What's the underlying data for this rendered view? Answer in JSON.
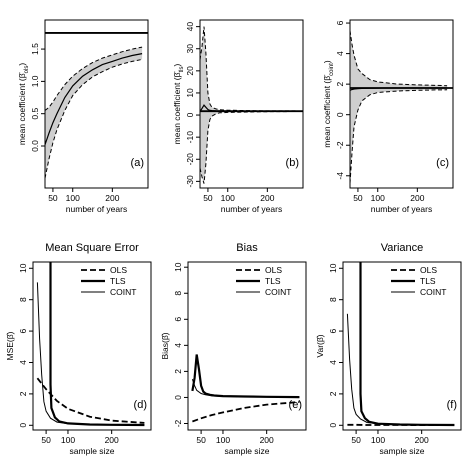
{
  "chart_data": [
    {
      "id": "a",
      "type": "area",
      "title": "",
      "panel_label": "(a)",
      "xlabel": "number of years",
      "ylabel": "mean coefficient",
      "ylabel_symbol": "(β̄",
      "ylabel_sub": "ols",
      "ylabel_close": ")",
      "xlim": [
        30,
        290
      ],
      "ylim": [
        -0.65,
        1.95
      ],
      "xticks": [
        50,
        100,
        200
      ],
      "xtick_labels": [
        "50",
        "100",
        "200"
      ],
      "yticks": [
        0,
        0.5,
        1.0,
        1.5
      ],
      "ytick_labels": [
        "0.0",
        "0.5",
        "1.0",
        "1.5"
      ],
      "hline": 1.75,
      "x": [
        30,
        40,
        50,
        60,
        80,
        100,
        125,
        150,
        175,
        200,
        225,
        250,
        275
      ],
      "band_lower": [
        -0.5,
        -0.2,
        0.05,
        0.25,
        0.55,
        0.78,
        0.95,
        1.07,
        1.15,
        1.22,
        1.27,
        1.31,
        1.34
      ],
      "band_upper": [
        0.55,
        0.6,
        0.68,
        0.78,
        0.95,
        1.08,
        1.2,
        1.29,
        1.36,
        1.41,
        1.46,
        1.5,
        1.53
      ],
      "series": [
        {
          "values": [
            0.02,
            0.2,
            0.36,
            0.5,
            0.75,
            0.93,
            1.08,
            1.18,
            1.26,
            1.31,
            1.36,
            1.4,
            1.43
          ]
        }
      ]
    },
    {
      "id": "b",
      "type": "area",
      "title": "",
      "panel_label": "(b)",
      "xlabel": "number of years",
      "ylabel": "mean coefficient",
      "ylabel_symbol": "(β̄",
      "ylabel_sub": "tls",
      "ylabel_close": ")",
      "xlim": [
        30,
        290
      ],
      "ylim": [
        -33,
        43
      ],
      "xticks": [
        50,
        100,
        200
      ],
      "xtick_labels": [
        "50",
        "100",
        "200"
      ],
      "yticks": [
        -30,
        -20,
        -10,
        0,
        10,
        20,
        30,
        40
      ],
      "ytick_labels": [
        "-30",
        "-20",
        "-10",
        "0",
        "10",
        "20",
        "30",
        "40"
      ],
      "hline": 1.75,
      "x": [
        30,
        35,
        40,
        45,
        50,
        55,
        60,
        70,
        80,
        100,
        150,
        200,
        275
      ],
      "band_lower": [
        -24,
        -28,
        -31,
        -22,
        -7,
        -2,
        -0.5,
        0.5,
        1.0,
        1.2,
        1.4,
        1.5,
        1.6
      ],
      "band_upper": [
        25,
        31,
        40,
        28,
        10,
        5,
        3.5,
        2.8,
        2.4,
        2.2,
        2.0,
        1.9,
        1.9
      ],
      "series": [
        {
          "values": [
            1.5,
            3.0,
            4.5,
            3.5,
            2.5,
            2.1,
            2.0,
            1.9,
            1.85,
            1.8,
            1.78,
            1.76,
            1.75
          ]
        }
      ]
    },
    {
      "id": "c",
      "type": "area",
      "title": "",
      "panel_label": "(c)",
      "xlabel": "number of years",
      "ylabel": "mean coefficient",
      "ylabel_symbol": "(β̄",
      "ylabel_sub": "coint",
      "ylabel_close": ")",
      "xlim": [
        30,
        290
      ],
      "ylim": [
        -4.8,
        6.2
      ],
      "xticks": [
        50,
        100,
        200
      ],
      "xtick_labels": [
        "50",
        "100",
        "200"
      ],
      "yticks": [
        -4,
        -2,
        0,
        2,
        4,
        6
      ],
      "ytick_labels": [
        "-4",
        "-2",
        "0",
        "2",
        "4",
        "6"
      ],
      "hline": 1.75,
      "x": [
        30,
        35,
        40,
        50,
        60,
        80,
        100,
        150,
        200,
        250,
        275
      ],
      "band_lower": [
        -4.5,
        -2.5,
        -0.8,
        0.3,
        0.9,
        1.3,
        1.45,
        1.55,
        1.6,
        1.62,
        1.63
      ],
      "band_upper": [
        5.5,
        4.6,
        3.9,
        3.0,
        2.7,
        2.3,
        2.15,
        2.0,
        1.95,
        1.92,
        1.9
      ],
      "series": [
        {
          "values": [
            1.6,
            1.65,
            1.68,
            1.7,
            1.72,
            1.73,
            1.74,
            1.75,
            1.75,
            1.75,
            1.75
          ]
        }
      ]
    },
    {
      "id": "d",
      "type": "line",
      "title": "Mean Square Error",
      "panel_label": "(d)",
      "xlabel": "sample size",
      "ylabel": "MSE(β̂)",
      "xlim": [
        20,
        290
      ],
      "ylim": [
        -0.3,
        10.4
      ],
      "xticks": [
        50,
        100,
        200
      ],
      "xtick_labels": [
        "50",
        "100",
        "200"
      ],
      "yticks": [
        0,
        2,
        4,
        6,
        8,
        10
      ],
      "ytick_labels": [
        "0",
        "2",
        "4",
        "6",
        "8",
        "10"
      ],
      "legend": [
        "OLS",
        "TLS",
        "COINT"
      ],
      "legend_position": "top-right",
      "series": [
        {
          "name": "OLS",
          "style": "dashed",
          "x": [
            30,
            50,
            75,
            100,
            150,
            200,
            275
          ],
          "values": [
            3.0,
            2.3,
            1.55,
            1.05,
            0.55,
            0.3,
            0.15
          ]
        },
        {
          "name": "TLS",
          "style": "thick",
          "x": [
            60,
            60,
            62,
            70,
            80,
            100,
            150,
            200,
            275
          ],
          "values": [
            10.6,
            2.6,
            1.1,
            0.5,
            0.25,
            0.12,
            0.05,
            0.03,
            0.02
          ]
        },
        {
          "name": "COINT",
          "style": "thin",
          "x": [
            30,
            35,
            40,
            45,
            50,
            60,
            75,
            100,
            150,
            200,
            275
          ],
          "values": [
            9.1,
            5.5,
            3.2,
            1.5,
            0.9,
            0.45,
            0.2,
            0.1,
            0.05,
            0.03,
            0.02
          ]
        }
      ]
    },
    {
      "id": "e",
      "type": "line",
      "title": "Bias",
      "panel_label": "(e)",
      "xlabel": "sample size",
      "ylabel": "Bias(β̂)",
      "xlim": [
        20,
        290
      ],
      "ylim": [
        -2.5,
        10.4
      ],
      "xticks": [
        50,
        100,
        200
      ],
      "xtick_labels": [
        "50",
        "100",
        "200"
      ],
      "yticks": [
        -2,
        0,
        2,
        4,
        6,
        8,
        10
      ],
      "ytick_labels": [
        "-2",
        "0",
        "2",
        "4",
        "6",
        "8",
        "10"
      ],
      "legend": [
        "OLS",
        "TLS",
        "COINT"
      ],
      "legend_position": "top-right",
      "series": [
        {
          "name": "OLS",
          "style": "dashed",
          "x": [
            30,
            50,
            75,
            100,
            150,
            200,
            275
          ],
          "values": [
            -1.85,
            -1.6,
            -1.35,
            -1.15,
            -0.8,
            -0.55,
            -0.35
          ]
        },
        {
          "name": "TLS",
          "style": "thick",
          "x": [
            30,
            35,
            40,
            45,
            50,
            55,
            60,
            70,
            80,
            100,
            150,
            200,
            275
          ],
          "values": [
            0.5,
            1.5,
            3.3,
            2.2,
            0.9,
            0.45,
            0.3,
            0.2,
            0.15,
            0.1,
            0.07,
            0.05,
            0.03
          ]
        },
        {
          "name": "COINT",
          "style": "thin",
          "x": [
            30,
            35,
            40,
            50,
            60,
            75,
            100,
            150,
            200,
            275
          ],
          "values": [
            1.4,
            0.9,
            0.55,
            0.3,
            0.2,
            0.12,
            0.08,
            0.05,
            0.03,
            0.02
          ]
        }
      ]
    },
    {
      "id": "f",
      "type": "line",
      "title": "Variance",
      "panel_label": "(f)",
      "xlabel": "sample size",
      "ylabel": "Var(β̂)",
      "xlim": [
        20,
        290
      ],
      "ylim": [
        -0.3,
        10.4
      ],
      "xticks": [
        50,
        100,
        200
      ],
      "xtick_labels": [
        "50",
        "100",
        "200"
      ],
      "yticks": [
        0,
        2,
        4,
        6,
        8,
        10
      ],
      "ytick_labels": [
        "0",
        "2",
        "4",
        "6",
        "8",
        "10"
      ],
      "legend": [
        "OLS",
        "TLS",
        "COINT"
      ],
      "legend_position": "top-right",
      "series": [
        {
          "name": "OLS",
          "style": "dashed",
          "x": [
            30,
            50,
            75,
            100,
            150,
            200,
            275
          ],
          "values": [
            0.03,
            0.03,
            0.02,
            0.02,
            0.02,
            0.01,
            0.01
          ]
        },
        {
          "name": "TLS",
          "style": "thick",
          "x": [
            60,
            60,
            62,
            70,
            80,
            100,
            150,
            200,
            275
          ],
          "values": [
            10.6,
            2.0,
            0.9,
            0.45,
            0.22,
            0.1,
            0.05,
            0.03,
            0.02
          ]
        },
        {
          "name": "COINT",
          "style": "thin",
          "x": [
            30,
            35,
            40,
            45,
            50,
            60,
            75,
            100,
            150,
            200,
            275
          ],
          "values": [
            7.1,
            4.2,
            2.3,
            1.1,
            0.7,
            0.4,
            0.18,
            0.1,
            0.05,
            0.03,
            0.02
          ]
        }
      ]
    }
  ]
}
